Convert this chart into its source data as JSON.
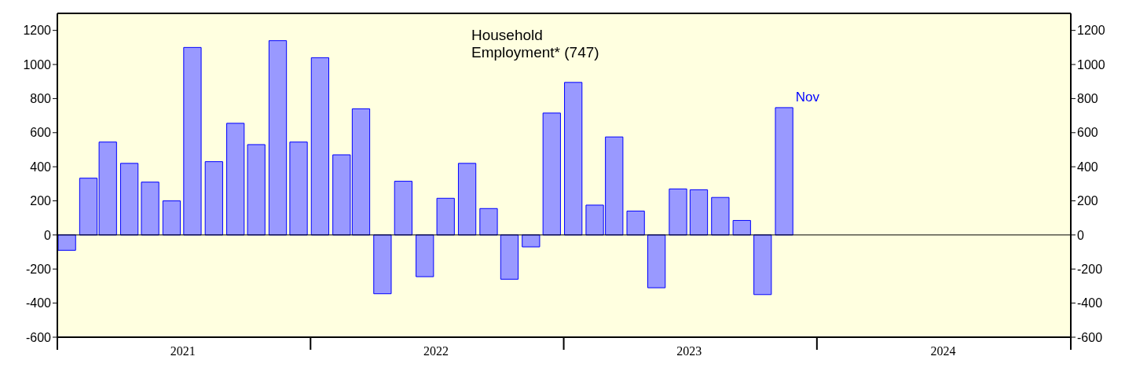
{
  "chart_data": {
    "type": "bar",
    "title": "Household Employment* (747)",
    "x": [
      "2021-01-15",
      "2021-02-15",
      "2021-03-15",
      "2021-04-15",
      "2021-05-15",
      "2021-06-15",
      "2021-07-15",
      "2021-08-15",
      "2021-09-15",
      "2021-10-15",
      "2021-11-15",
      "2021-12-15",
      "2022-01-15",
      "2022-02-15",
      "2022-03-15",
      "2022-04-15",
      "2022-05-15",
      "2022-06-15",
      "2022-07-15",
      "2022-08-15",
      "2022-09-15",
      "2022-10-15",
      "2022-11-15",
      "2022-12-15",
      "2023-01-15",
      "2023-02-15",
      "2023-03-15",
      "2023-04-15",
      "2023-05-15",
      "2023-06-15",
      "2023-07-15",
      "2023-08-15",
      "2023-09-15",
      "2023-10-15",
      "2023-11-15"
    ],
    "values": [
      -90,
      333,
      545,
      420,
      310,
      200,
      1100,
      430,
      655,
      530,
      1140,
      545,
      1040,
      470,
      740,
      -345,
      315,
      -245,
      215,
      420,
      155,
      -260,
      -70,
      715,
      895,
      175,
      575,
      140,
      -310,
      270,
      265,
      220,
      85,
      -350,
      747
    ],
    "color": "#9999ff",
    "xlim": [
      "2021-01-01",
      "2025-01-01"
    ],
    "xticks": [
      {
        "value": "2021-01-01",
        "label": null
      },
      {
        "value": "2021-07-01",
        "label": "2021"
      },
      {
        "value": "2022-01-01",
        "label": null
      },
      {
        "value": "2022-07-01",
        "label": "2022"
      },
      {
        "value": "2023-01-01",
        "label": null
      },
      {
        "value": "2023-07-01",
        "label": "2023"
      },
      {
        "value": "2024-01-01",
        "label": null
      },
      {
        "value": "2024-07-01",
        "label": "2024"
      },
      {
        "value": "2025-01-01",
        "label": null
      }
    ],
    "ylim": [
      -600,
      1300
    ],
    "yticks": [
      -600,
      -400,
      -200,
      0,
      200,
      400,
      600,
      800,
      1000,
      1200
    ],
    "y2lim": [
      -600,
      1300
    ],
    "y2ticks": [
      -600,
      -400,
      -200,
      0,
      200,
      400,
      600,
      800,
      1000,
      1200
    ],
    "ref_lines": [
      {
        "axis": "y",
        "value": 0,
        "color": "#000000"
      }
    ],
    "annotations": [
      {
        "text": "Nov",
        "x": "2023-11-15",
        "y": 747
      }
    ],
    "grid": false,
    "legend": false
  }
}
